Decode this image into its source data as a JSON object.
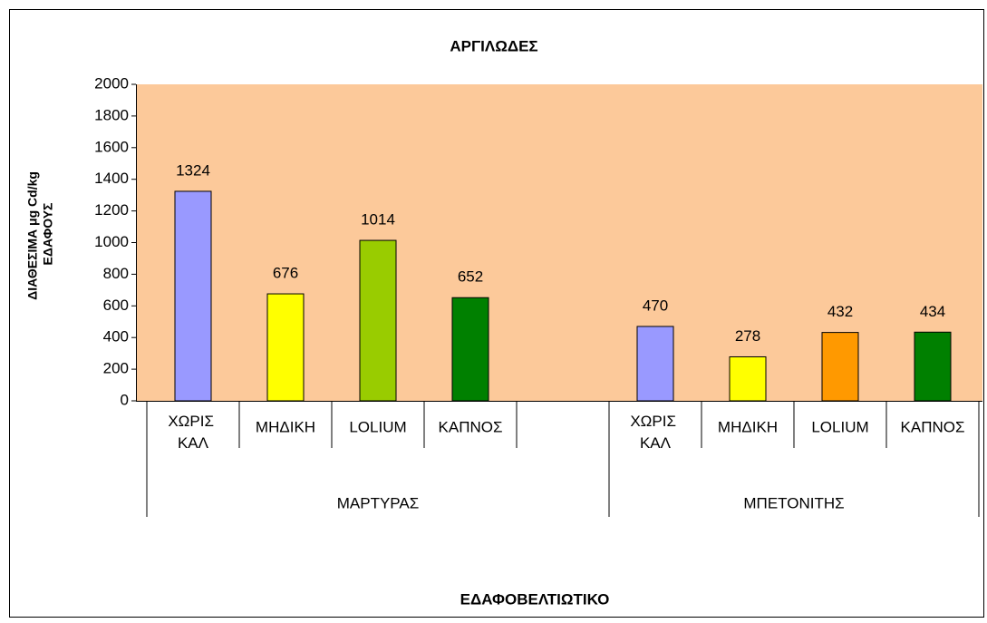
{
  "chart_data": {
    "type": "bar",
    "title": "ΑΡΓΙΛΩΔΕΣ",
    "x_label": "ΕΔΑΦΟΒΕΛΤΙΩΤΙΚΟ",
    "y_label": "ΔΙΑΘΕΣΙΜΑ μg Cd/kg ΕΔΑΦΟΥΣ",
    "categories": [
      "ΧΩΡΙΣ ΚΑΛ",
      "ΜΗΔΙΚΗ",
      "LOLIUM",
      "ΚΑΠΝΟΣ",
      null,
      "ΧΩΡΙΣ ΚΑΛ",
      "ΜΗΔΙΚΗ",
      "LOLIUM",
      "ΚΑΠΝΟΣ"
    ],
    "values": [
      1324,
      676,
      1014,
      652,
      null,
      470,
      278,
      432,
      434
    ],
    "colors": [
      "#9999ff",
      "#ffff00",
      "#99cc00",
      "#008000",
      null,
      "#9999ff",
      "#ffff00",
      "#ff9900",
      "#008000"
    ],
    "groups": [
      {
        "label": "ΜΑΡΤΥΡΑΣ",
        "count": 5
      },
      {
        "label": "ΜΠΕΤΟΝΙΤΗΣ",
        "count": 4
      }
    ],
    "ylim": [
      0,
      2000
    ],
    "yticks": [
      0,
      200,
      400,
      600,
      800,
      1000,
      1200,
      1400,
      1600,
      1800,
      2000
    ],
    "plot_background": "#fcc99a",
    "data_labels": true
  }
}
